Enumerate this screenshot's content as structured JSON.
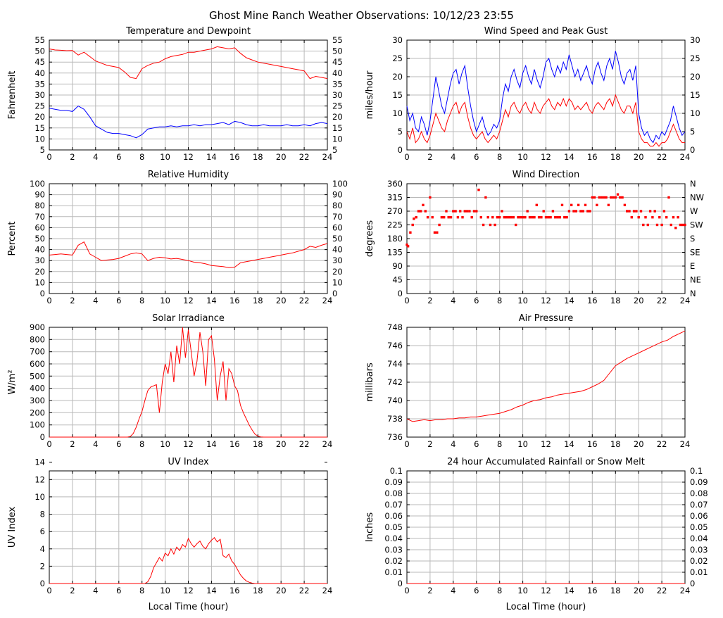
{
  "header": {
    "title": "Ghost Mine Ranch Weather Observations: 10/12/23 23:55"
  },
  "colors": {
    "red": "#ff0000",
    "blue": "#0000ff",
    "grid": "#b9b9b9",
    "axis": "#000000"
  },
  "chart_data": [
    {
      "title": "Temperature and Dewpoint",
      "type": "line",
      "ylabel": "Fahrenheit",
      "ylim": [
        5,
        55
      ],
      "ytick_step": 5,
      "xlim": [
        0,
        24
      ],
      "xtick_step": 2,
      "right_ticks": "mirror",
      "x_start": 0,
      "x_step": 0.5,
      "series": [
        {
          "name": "Dewpoint",
          "color": "#0000ff",
          "values": [
            24,
            23.5,
            23,
            23,
            22.5,
            25,
            23.5,
            20,
            16,
            14.5,
            13,
            12.5,
            12.5,
            12,
            11.5,
            10.5,
            12,
            14.5,
            15,
            15.5,
            15.5,
            16,
            15.5,
            16,
            16,
            16.5,
            16,
            16.5,
            16.5,
            17,
            17.5,
            16.5,
            18,
            17.5,
            16.5,
            16,
            16,
            16.5,
            16,
            16,
            16,
            16.5,
            16,
            16,
            16.5,
            16,
            17,
            17.5,
            17
          ]
        },
        {
          "name": "Temperature",
          "color": "#ff0000",
          "values": [
            51,
            50.5,
            50.4,
            50.2,
            50.3,
            48.2,
            49.5,
            47.5,
            45.5,
            44.5,
            43.5,
            43,
            42.5,
            40.5,
            38,
            37.5,
            42,
            43.5,
            44.5,
            45,
            46.5,
            47.5,
            48,
            48.5,
            49.5,
            49.5,
            50,
            50.5,
            51,
            52,
            51.5,
            51,
            51.5,
            49,
            47,
            46,
            45,
            44.5,
            44,
            43.5,
            43,
            42.5,
            42,
            41.5,
            41,
            37.5,
            38.5,
            38,
            37.5
          ]
        }
      ]
    },
    {
      "title": "Wind Speed and Peak Gust",
      "type": "line",
      "ylabel": "miles/hour",
      "ylim": [
        0,
        30
      ],
      "ytick_step": 5,
      "xlim": [
        0,
        24
      ],
      "xtick_step": 2,
      "right_ticks": "mirror",
      "x_start": 0,
      "x_step": 0.25,
      "series": [
        {
          "name": "Peak Gust",
          "color": "#0000ff",
          "values": [
            12,
            8,
            10,
            6,
            5,
            9,
            7,
            4,
            8,
            14,
            20,
            16,
            12,
            10,
            14,
            18,
            21,
            22,
            18,
            21,
            23,
            17,
            12,
            8,
            5,
            7,
            9,
            6,
            4,
            5,
            7,
            6,
            8,
            14,
            18,
            16,
            20,
            22,
            19,
            17,
            21,
            23,
            20,
            18,
            22,
            19,
            17,
            20,
            24,
            25,
            22,
            20,
            23,
            21,
            24,
            22,
            26,
            23,
            20,
            22,
            19,
            21,
            23,
            20,
            18,
            22,
            24,
            21,
            19,
            23,
            25,
            22,
            27,
            24,
            20,
            18,
            21,
            22,
            19,
            23,
            10,
            6,
            4,
            5,
            3,
            2,
            4,
            3,
            5,
            4,
            6,
            8,
            12,
            9,
            6,
            4,
            5
          ]
        },
        {
          "name": "Wind Speed",
          "color": "#ff0000",
          "values": [
            5,
            3,
            6,
            2,
            3,
            5,
            3,
            2,
            4,
            7,
            10,
            8,
            6,
            5,
            8,
            10,
            12,
            13,
            10,
            12,
            13,
            9,
            6,
            4,
            3,
            4,
            5,
            3,
            2,
            3,
            4,
            3,
            5,
            8,
            11,
            9,
            12,
            13,
            11,
            10,
            12,
            13,
            11,
            10,
            13,
            11,
            10,
            12,
            13,
            14,
            12,
            11,
            13,
            12,
            14,
            12,
            14,
            13,
            11,
            12,
            11,
            12,
            13,
            11,
            10,
            12,
            13,
            12,
            11,
            13,
            14,
            12,
            15,
            13,
            11,
            10,
            12,
            12,
            10,
            13,
            5,
            3,
            2,
            2,
            1,
            1,
            2,
            1,
            2,
            2,
            3,
            5,
            7,
            5,
            3,
            2,
            2
          ]
        }
      ]
    },
    {
      "title": "Relative Humidity",
      "type": "line",
      "ylabel": "Percent",
      "ylim": [
        0,
        100
      ],
      "ytick_step": 10,
      "xlim": [
        0,
        24
      ],
      "xtick_step": 2,
      "right_ticks": "mirror",
      "x_start": 0,
      "x_step": 0.5,
      "series": [
        {
          "name": "Relative Humidity",
          "color": "#ff0000",
          "values": [
            35,
            35.5,
            36,
            35.5,
            35,
            44,
            47,
            36,
            33,
            30,
            30.5,
            31,
            32,
            34,
            36,
            37,
            36,
            30,
            32,
            33,
            32.5,
            31.5,
            32,
            31,
            30,
            28.5,
            28,
            27,
            25.5,
            25,
            24.5,
            23.5,
            24,
            28,
            29,
            30,
            31,
            32,
            33,
            34,
            35,
            36,
            37,
            38.5,
            40,
            43,
            42,
            44,
            45.5
          ]
        }
      ]
    },
    {
      "title": "Wind Direction",
      "type": "scatter",
      "ylabel": "degrees",
      "ylim": [
        0,
        360
      ],
      "ytick_step": 45,
      "xlim": [
        0,
        24
      ],
      "xtick_step": 2,
      "right_labels": [
        "N",
        "NW",
        "W",
        "SW",
        "S",
        "SE",
        "E",
        "NE",
        "N"
      ],
      "point_color": "#ff0000",
      "points": [
        [
          0,
          160
        ],
        [
          0.1,
          155
        ],
        [
          0.3,
          200
        ],
        [
          0.5,
          225
        ],
        [
          0.6,
          245
        ],
        [
          0.8,
          250
        ],
        [
          1.0,
          270
        ],
        [
          1.2,
          270
        ],
        [
          1.4,
          290
        ],
        [
          1.6,
          270
        ],
        [
          1.8,
          250
        ],
        [
          2.0,
          315
        ],
        [
          2.2,
          250
        ],
        [
          2.4,
          200
        ],
        [
          2.6,
          200
        ],
        [
          2.8,
          225
        ],
        [
          3.0,
          250
        ],
        [
          3.2,
          250
        ],
        [
          3.4,
          270
        ],
        [
          3.6,
          250
        ],
        [
          3.8,
          250
        ],
        [
          4.0,
          270
        ],
        [
          4.2,
          270
        ],
        [
          4.4,
          250
        ],
        [
          4.6,
          270
        ],
        [
          4.8,
          250
        ],
        [
          5.0,
          270
        ],
        [
          5.2,
          270
        ],
        [
          5.4,
          270
        ],
        [
          5.6,
          250
        ],
        [
          5.8,
          270
        ],
        [
          6.0,
          270
        ],
        [
          6.2,
          340
        ],
        [
          6.4,
          250
        ],
        [
          6.6,
          225
        ],
        [
          6.8,
          315
        ],
        [
          7.0,
          250
        ],
        [
          7.2,
          225
        ],
        [
          7.4,
          250
        ],
        [
          7.6,
          225
        ],
        [
          7.8,
          250
        ],
        [
          8.0,
          250
        ],
        [
          8.2,
          270
        ],
        [
          8.4,
          250
        ],
        [
          8.6,
          250
        ],
        [
          8.8,
          250
        ],
        [
          9.0,
          250
        ],
        [
          9.2,
          250
        ],
        [
          9.4,
          225
        ],
        [
          9.6,
          250
        ],
        [
          9.8,
          250
        ],
        [
          10.0,
          250
        ],
        [
          10.2,
          250
        ],
        [
          10.4,
          270
        ],
        [
          10.6,
          250
        ],
        [
          10.8,
          250
        ],
        [
          11.0,
          250
        ],
        [
          11.2,
          290
        ],
        [
          11.4,
          250
        ],
        [
          11.6,
          250
        ],
        [
          11.8,
          270
        ],
        [
          12.0,
          250
        ],
        [
          12.2,
          250
        ],
        [
          12.4,
          250
        ],
        [
          12.6,
          270
        ],
        [
          12.8,
          250
        ],
        [
          13.0,
          250
        ],
        [
          13.2,
          250
        ],
        [
          13.4,
          290
        ],
        [
          13.6,
          250
        ],
        [
          13.8,
          250
        ],
        [
          14.0,
          270
        ],
        [
          14.2,
          290
        ],
        [
          14.4,
          270
        ],
        [
          14.6,
          270
        ],
        [
          14.8,
          290
        ],
        [
          15.0,
          270
        ],
        [
          15.2,
          270
        ],
        [
          15.4,
          290
        ],
        [
          15.6,
          270
        ],
        [
          15.8,
          270
        ],
        [
          16.0,
          315
        ],
        [
          16.2,
          315
        ],
        [
          16.4,
          290
        ],
        [
          16.6,
          315
        ],
        [
          16.8,
          315
        ],
        [
          17.0,
          315
        ],
        [
          17.2,
          315
        ],
        [
          17.4,
          290
        ],
        [
          17.6,
          315
        ],
        [
          17.8,
          315
        ],
        [
          18.0,
          315
        ],
        [
          18.2,
          325
        ],
        [
          18.4,
          315
        ],
        [
          18.6,
          315
        ],
        [
          18.8,
          290
        ],
        [
          19.0,
          270
        ],
        [
          19.2,
          270
        ],
        [
          19.4,
          250
        ],
        [
          19.6,
          270
        ],
        [
          19.8,
          270
        ],
        [
          20.0,
          250
        ],
        [
          20.2,
          270
        ],
        [
          20.4,
          225
        ],
        [
          20.6,
          250
        ],
        [
          20.8,
          225
        ],
        [
          21.0,
          270
        ],
        [
          21.2,
          250
        ],
        [
          21.4,
          270
        ],
        [
          21.6,
          225
        ],
        [
          21.8,
          250
        ],
        [
          22.0,
          225
        ],
        [
          22.2,
          270
        ],
        [
          22.4,
          250
        ],
        [
          22.6,
          315
        ],
        [
          22.8,
          225
        ],
        [
          23.0,
          250
        ],
        [
          23.2,
          215
        ],
        [
          23.4,
          250
        ],
        [
          23.6,
          225
        ],
        [
          23.8,
          225
        ],
        [
          24.0,
          225
        ]
      ]
    },
    {
      "title": "Solar Irradiance",
      "type": "line",
      "ylabel": "W/m²",
      "ylim": [
        0,
        900
      ],
      "ytick_step": 100,
      "xlim": [
        0,
        24
      ],
      "xtick_step": 2,
      "x_start": 0,
      "x_step": 0.25,
      "series": [
        {
          "name": "Solar Irradiance",
          "color": "#ff0000",
          "values": [
            0,
            0,
            0,
            0,
            0,
            0,
            0,
            0,
            0,
            0,
            0,
            0,
            0,
            0,
            0,
            0,
            0,
            0,
            0,
            0,
            0,
            0,
            0,
            0,
            0,
            0,
            0,
            0,
            5,
            30,
            80,
            150,
            210,
            300,
            380,
            410,
            420,
            430,
            200,
            450,
            600,
            520,
            700,
            450,
            750,
            600,
            900,
            650,
            880,
            700,
            500,
            620,
            860,
            700,
            420,
            800,
            830,
            640,
            300,
            500,
            620,
            300,
            560,
            520,
            420,
            380,
            260,
            200,
            150,
            100,
            60,
            25,
            8,
            2,
            0,
            0,
            0,
            0,
            0,
            0,
            0,
            0,
            0,
            0,
            0,
            0,
            0,
            0,
            0,
            0,
            0,
            0,
            0,
            0,
            0,
            0,
            0
          ]
        }
      ]
    },
    {
      "title": "Air Pressure",
      "type": "line",
      "ylabel": "millibars",
      "ylim": [
        736,
        748
      ],
      "ytick_step": 2,
      "xlim": [
        0,
        24
      ],
      "xtick_step": 2,
      "x_start": 0,
      "x_step": 0.5,
      "series": [
        {
          "name": "Air Pressure",
          "color": "#ff0000",
          "values": [
            738,
            737.7,
            737.8,
            737.9,
            737.8,
            737.9,
            737.9,
            738,
            738,
            738.1,
            738.1,
            738.2,
            738.2,
            738.3,
            738.4,
            738.5,
            738.6,
            738.8,
            739,
            739.3,
            739.5,
            739.8,
            740,
            740.1,
            740.3,
            740.4,
            740.6,
            740.7,
            740.8,
            740.9,
            741,
            741.2,
            741.5,
            741.8,
            742.2,
            743,
            743.8,
            744.2,
            744.6,
            744.9,
            745.2,
            745.5,
            745.8,
            746.1,
            746.4,
            746.6,
            747,
            747.3,
            747.6
          ]
        }
      ]
    },
    {
      "title": "UV Index",
      "type": "line",
      "ylabel": "UV Index",
      "xlabel": "Local Time (hour)",
      "ylim": [
        0,
        13
      ],
      "ytick_step": 2,
      "xlim": [
        0,
        24
      ],
      "xtick_step": 2,
      "x_start": 0,
      "x_step": 0.25,
      "series": [
        {
          "name": "UV Index",
          "color": "#ff0000",
          "values": [
            0,
            0,
            0,
            0,
            0,
            0,
            0,
            0,
            0,
            0,
            0,
            0,
            0,
            0,
            0,
            0,
            0,
            0,
            0,
            0,
            0,
            0,
            0,
            0,
            0,
            0,
            0,
            0,
            0,
            0,
            0,
            0,
            0,
            0,
            0.2,
            0.8,
            1.8,
            2.4,
            3,
            2.6,
            3.5,
            3.2,
            4,
            3.4,
            4.2,
            3.8,
            4.5,
            4.2,
            5.2,
            4.6,
            4.2,
            4.6,
            4.9,
            4.3,
            4,
            4.6,
            5,
            5.3,
            4.8,
            5.1,
            3.2,
            3,
            3.4,
            2.6,
            2.2,
            1.6,
            1,
            0.6,
            0.3,
            0.15,
            0.05,
            0,
            0,
            0,
            0,
            0,
            0,
            0,
            0,
            0,
            0,
            0,
            0,
            0,
            0,
            0,
            0,
            0,
            0,
            0,
            0,
            0,
            0,
            0,
            0,
            0,
            0
          ]
        }
      ]
    },
    {
      "title": "24 hour Accumulated Rainfall or Snow Melt",
      "type": "line",
      "ylabel": "Inches",
      "xlabel": "Local Time (hour)",
      "ylim": [
        0,
        0.1
      ],
      "ytick_step": 0.01,
      "xlim": [
        0,
        24
      ],
      "xtick_step": 2,
      "right_ticks": "mirror",
      "x_start": 0,
      "x_step": 3,
      "series": [
        {
          "name": "Rainfall",
          "color": "#ff0000",
          "values": [
            0,
            0,
            0,
            0,
            0,
            0,
            0,
            0,
            0
          ]
        }
      ]
    }
  ]
}
